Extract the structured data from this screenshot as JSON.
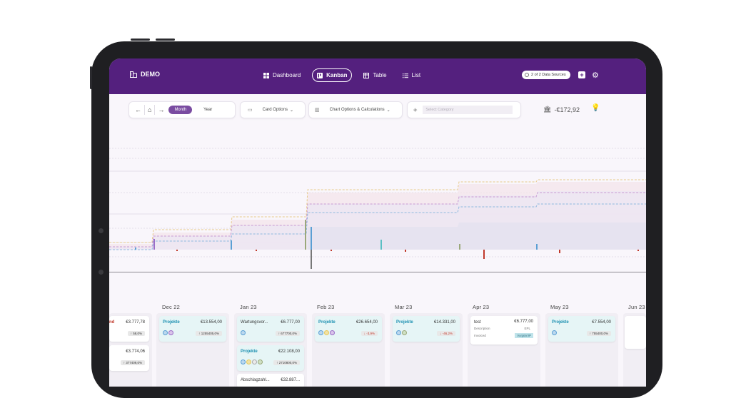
{
  "app": {
    "brand": "DEMO",
    "nav": [
      {
        "label": "Dashboard",
        "icon": "dashboard-icon",
        "active": false
      },
      {
        "label": "Kanban",
        "icon": "kanban-icon",
        "active": true
      },
      {
        "label": "Table",
        "icon": "table-icon",
        "active": false
      },
      {
        "label": "List",
        "icon": "list-icon",
        "active": false
      }
    ],
    "data_sources_label": "2 of 2 Data Sources"
  },
  "toolbar": {
    "period_month": "Month",
    "period_year": "Year",
    "card_options": "Card Options",
    "chart_options": "Chart Options & Calculations",
    "category_placeholder": "Select Category",
    "balance": "-€172,92"
  },
  "months": [
    "Dec 22",
    "Jan 23",
    "Feb 23",
    "Mar 23",
    "Apr 23",
    "May 23",
    "Jun 23"
  ],
  "cards": {
    "prev_1": {
      "title": "nd",
      "amount": "€3.777,78",
      "chip": "58,0%"
    },
    "prev_2": {
      "title": "",
      "amount": "€3.774,06",
      "chip": "377409,0%"
    },
    "dec": {
      "title": "Projekte",
      "amount": "€13.554,00",
      "chip": "1255405,0%"
    },
    "jan_1": {
      "title": "Wartungsvor...",
      "amount": "€6.777,00",
      "chip": "677700,0%"
    },
    "jan_2": {
      "title": "Projekte",
      "amount": "€22.108,00",
      "chip": "2710800,0%"
    },
    "jan_3": {
      "title": "Abschlagzahl...",
      "amount": "€32.887..."
    },
    "feb": {
      "title": "Projekte",
      "amount": "€26.654,00",
      "chip": "-3,9%"
    },
    "mar": {
      "title": "Projekte",
      "amount": "€14.331,00",
      "chip": "-46,2%"
    },
    "apr": {
      "title": "test",
      "amount": "€6.777,00",
      "line2_label": "Description",
      "line2_value": "EPL",
      "line3_label": "Invoiced",
      "line3_value": "Vorjahr/IP"
    },
    "may": {
      "title": "Projekte",
      "amount": "€7.554,00",
      "chip": "755400,0%"
    }
  },
  "colors": {
    "header": "#54207e",
    "accent": "#7a4ca1",
    "teal": "#1a8fb0"
  }
}
